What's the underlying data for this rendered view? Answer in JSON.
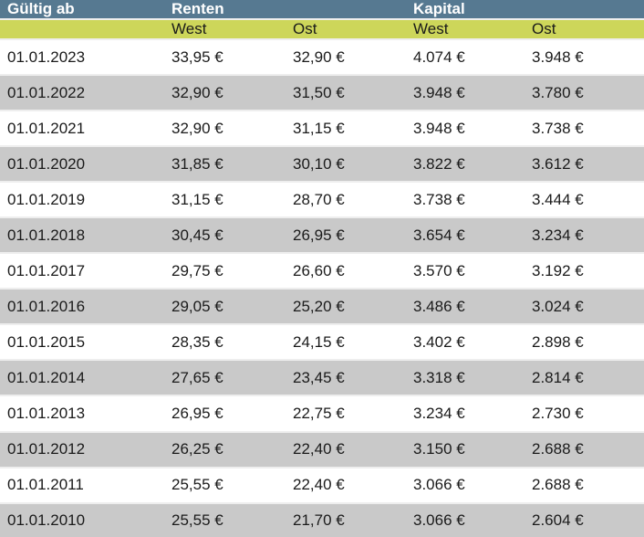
{
  "colors": {
    "header_bg": "#567991",
    "subheader_bg": "#cdd65a",
    "row_alt_bg": "#c9c9c9",
    "separator": "#eeeeee",
    "header_text": "#ffffff",
    "body_text": "#1a1a1a"
  },
  "table": {
    "header": {
      "valid_from": "Gültig ab",
      "group_renten": "Renten",
      "group_kapital": "Kapital"
    },
    "subheader": {
      "renten_west": "West",
      "renten_ost": "Ost",
      "kapital_west": "West",
      "kapital_ost": "Ost"
    },
    "rows": [
      {
        "date": "01.01.2023",
        "renten_west": "33,95 €",
        "renten_ost": "32,90 €",
        "kapital_west": "4.074 €",
        "kapital_ost": "3.948 €"
      },
      {
        "date": "01.01.2022",
        "renten_west": "32,90 €",
        "renten_ost": "31,50 €",
        "kapital_west": "3.948 €",
        "kapital_ost": "3.780 €"
      },
      {
        "date": "01.01.2021",
        "renten_west": "32,90 €",
        "renten_ost": "31,15 €",
        "kapital_west": "3.948 €",
        "kapital_ost": "3.738 €"
      },
      {
        "date": "01.01.2020",
        "renten_west": "31,85 €",
        "renten_ost": "30,10 €",
        "kapital_west": "3.822 €",
        "kapital_ost": "3.612 €"
      },
      {
        "date": "01.01.2019",
        "renten_west": "31,15 €",
        "renten_ost": "28,70 €",
        "kapital_west": "3.738 €",
        "kapital_ost": "3.444 €"
      },
      {
        "date": "01.01.2018",
        "renten_west": "30,45 €",
        "renten_ost": "26,95 €",
        "kapital_west": "3.654 €",
        "kapital_ost": "3.234 €"
      },
      {
        "date": "01.01.2017",
        "renten_west": "29,75 €",
        "renten_ost": "26,60 €",
        "kapital_west": "3.570 €",
        "kapital_ost": "3.192 €"
      },
      {
        "date": "01.01.2016",
        "renten_west": "29,05 €",
        "renten_ost": "25,20 €",
        "kapital_west": "3.486 €",
        "kapital_ost": "3.024 €"
      },
      {
        "date": "01.01.2015",
        "renten_west": "28,35 €",
        "renten_ost": "24,15 €",
        "kapital_west": "3.402 €",
        "kapital_ost": "2.898 €"
      },
      {
        "date": "01.01.2014",
        "renten_west": "27,65 €",
        "renten_ost": "23,45 €",
        "kapital_west": "3.318 €",
        "kapital_ost": "2.814 €"
      },
      {
        "date": "01.01.2013",
        "renten_west": "26,95 €",
        "renten_ost": "22,75 €",
        "kapital_west": "3.234 €",
        "kapital_ost": "2.730 €"
      },
      {
        "date": "01.01.2012",
        "renten_west": "26,25 €",
        "renten_ost": "22,40 €",
        "kapital_west": "3.150 €",
        "kapital_ost": "2.688 €"
      },
      {
        "date": "01.01.2011",
        "renten_west": "25,55 €",
        "renten_ost": "22,40 €",
        "kapital_west": "3.066 €",
        "kapital_ost": "2.688 €"
      },
      {
        "date": "01.01.2010",
        "renten_west": "25,55 €",
        "renten_ost": "21,70 €",
        "kapital_west": "3.066 €",
        "kapital_ost": "2.604 €"
      }
    ]
  },
  "chart_data": {
    "type": "table",
    "title": "",
    "column_groups": [
      "Renten",
      "Kapital"
    ],
    "columns": [
      "Gültig ab",
      "Renten West",
      "Renten Ost",
      "Kapital West",
      "Kapital Ost"
    ],
    "rows": [
      [
        "01.01.2023",
        "33,95 €",
        "32,90 €",
        "4.074 €",
        "3.948 €"
      ],
      [
        "01.01.2022",
        "32,90 €",
        "31,50 €",
        "3.948 €",
        "3.780 €"
      ],
      [
        "01.01.2021",
        "32,90 €",
        "31,15 €",
        "3.948 €",
        "3.738 €"
      ],
      [
        "01.01.2020",
        "31,85 €",
        "30,10 €",
        "3.822 €",
        "3.612 €"
      ],
      [
        "01.01.2019",
        "31,15 €",
        "28,70 €",
        "3.738 €",
        "3.444 €"
      ],
      [
        "01.01.2018",
        "30,45 €",
        "26,95 €",
        "3.654 €",
        "3.234 €"
      ],
      [
        "01.01.2017",
        "29,75 €",
        "26,60 €",
        "3.570 €",
        "3.192 €"
      ],
      [
        "01.01.2016",
        "29,05 €",
        "25,20 €",
        "3.486 €",
        "3.024 €"
      ],
      [
        "01.01.2015",
        "28,35 €",
        "24,15 €",
        "3.402 €",
        "2.898 €"
      ],
      [
        "01.01.2014",
        "27,65 €",
        "23,45 €",
        "3.318 €",
        "2.814 €"
      ],
      [
        "01.01.2013",
        "26,95 €",
        "22,75 €",
        "3.234 €",
        "2.730 €"
      ],
      [
        "01.01.2012",
        "26,25 €",
        "22,40 €",
        "3.150 €",
        "2.688 €"
      ],
      [
        "01.01.2011",
        "25,55 €",
        "22,40 €",
        "3.066 €",
        "2.688 €"
      ],
      [
        "01.01.2010",
        "25,55 €",
        "21,70 €",
        "3.066 €",
        "2.604 €"
      ]
    ]
  }
}
